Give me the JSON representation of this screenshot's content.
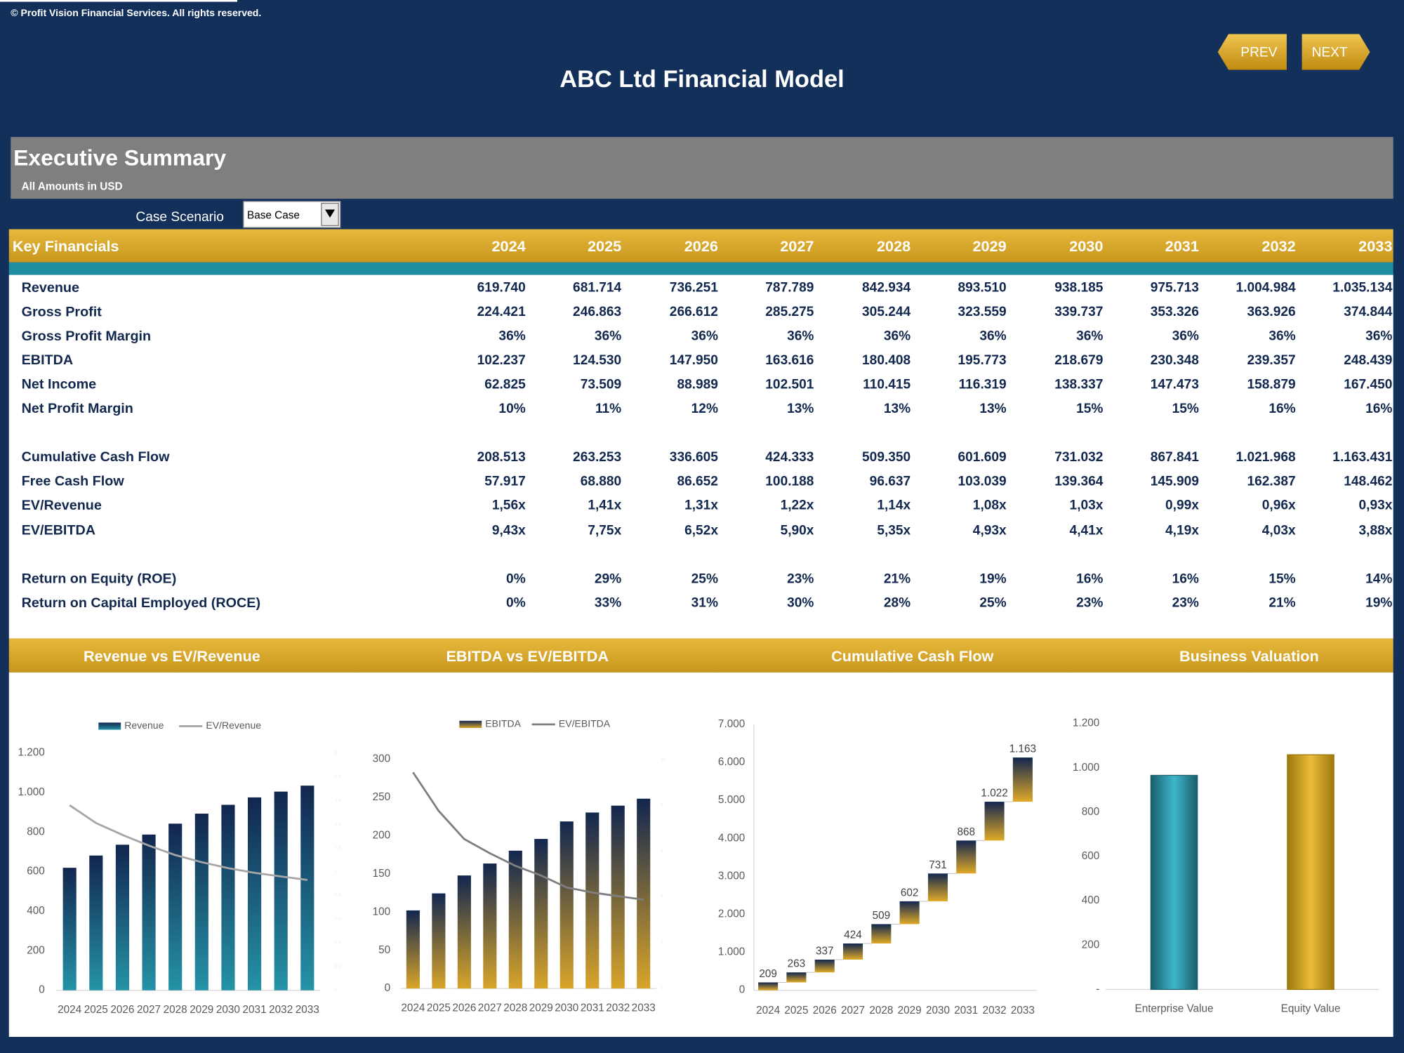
{
  "header": {
    "copyright": "© Profit Vision Financial Services. All rights reserved.",
    "title": "ABC Ltd Financial Model",
    "buttons": [
      "PREV",
      "NEXT"
    ]
  },
  "section": {
    "title": "Executive Summary",
    "subtitle": "All Amounts in  USD"
  },
  "scenario": {
    "label": "Case Scenario",
    "value": "Base Case"
  },
  "table": {
    "header": "Key Financials",
    "columns": [
      "2024",
      "2025",
      "2026",
      "2027",
      "2028",
      "2029",
      "2030",
      "2031",
      "2032",
      "2033"
    ],
    "rows": [
      [
        "Revenue",
        "619.740",
        "681.714",
        "736.251",
        "787.789",
        "842.934",
        "893.510",
        "938.185",
        "975.713",
        "1.004.984",
        "1.035.134"
      ],
      [
        "Gross Profit",
        "224.421",
        "246.863",
        "266.612",
        "285.275",
        "305.244",
        "323.559",
        "339.737",
        "353.326",
        "363.926",
        "374.844"
      ],
      [
        "Gross Profit Margin",
        "36%",
        "36%",
        "36%",
        "36%",
        "36%",
        "36%",
        "36%",
        "36%",
        "36%",
        "36%"
      ],
      [
        "EBITDA",
        "102.237",
        "124.530",
        "147.950",
        "163.616",
        "180.408",
        "195.773",
        "218.679",
        "230.348",
        "239.357",
        "248.439"
      ],
      [
        "Net Income",
        "62.825",
        "73.509",
        "88.989",
        "102.501",
        "110.415",
        "116.319",
        "138.337",
        "147.473",
        "158.879",
        "167.450"
      ],
      [
        "Net Profit Margin",
        "10%",
        "11%",
        "12%",
        "13%",
        "13%",
        "13%",
        "15%",
        "15%",
        "16%",
        "16%"
      ],
      [
        "Cumulative Cash Flow",
        "208.513",
        "263.253",
        "336.605",
        "424.333",
        "509.350",
        "601.609",
        "731.032",
        "867.841",
        "1.021.968",
        "1.163.431"
      ],
      [
        "Free Cash Flow",
        "57.917",
        "68.880",
        "86.652",
        "100.188",
        "96.637",
        "103.039",
        "139.364",
        "145.909",
        "162.387",
        "148.462"
      ],
      [
        "EV/Revenue",
        "1,56x",
        "1,41x",
        "1,31x",
        "1,22x",
        "1,14x",
        "1,08x",
        "1,03x",
        "0,99x",
        "0,96x",
        "0,93x"
      ],
      [
        "EV/EBITDA",
        "9,43x",
        "7,75x",
        "6,52x",
        "5,90x",
        "5,35x",
        "4,93x",
        "4,41x",
        "4,19x",
        "4,03x",
        "3,88x"
      ],
      [
        "Return on Equity (ROE)",
        "0%",
        "29%",
        "25%",
        "23%",
        "21%",
        "19%",
        "16%",
        "16%",
        "15%",
        "14%"
      ],
      [
        "Return on Capital Employed (ROCE)",
        "0%",
        "33%",
        "31%",
        "30%",
        "28%",
        "25%",
        "23%",
        "23%",
        "21%",
        "19%"
      ]
    ]
  },
  "chart_data": [
    {
      "type": "combo",
      "title": "Revenue vs EV/Revenue",
      "categories": [
        "2024",
        "2025",
        "2026",
        "2027",
        "2028",
        "2029",
        "2030",
        "2031",
        "2032",
        "2033"
      ],
      "series": [
        {
          "name": "Revenue",
          "gradient": [
            "#12264f",
            "#2593a6"
          ],
          "values": [
            619.74,
            681.714,
            736.251,
            787.789,
            842.934,
            893.51,
            938.185,
            975.713,
            1004.984,
            1035.134
          ]
        },
        {
          "name": "EV/Revenue",
          "color": "#a6a6a6",
          "axis": "y2",
          "values": [
            1.56,
            1.41,
            1.31,
            1.22,
            1.14,
            1.08,
            1.03,
            0.99,
            0.96,
            0.93
          ]
        }
      ],
      "ylim": [
        0,
        1200
      ],
      "yticks": [
        0,
        200,
        400,
        600,
        800,
        {
          "value": 1000,
          "label": "1.000"
        },
        {
          "value": 1200,
          "label": "1.200"
        }
      ],
      "y2lim": [
        0,
        2
      ],
      "y2ticks": [
        0,
        0.2,
        0.4,
        0.6,
        0.8,
        1,
        1.2,
        1.4,
        1.6,
        1.8,
        2
      ],
      "legend": "top"
    },
    {
      "type": "combo",
      "title": "EBITDA vs EV/EBITDA",
      "categories": [
        "2024",
        "2025",
        "2026",
        "2027",
        "2028",
        "2029",
        "2030",
        "2031",
        "2032",
        "2033"
      ],
      "series": [
        {
          "name": "EBITDA",
          "gradient": [
            "#12264f",
            "#d9a52a"
          ],
          "values": [
            102.237,
            124.53,
            147.95,
            163.616,
            180.408,
            195.773,
            218.679,
            230.348,
            239.357,
            248.439
          ]
        },
        {
          "name": "EV/EBITDA",
          "color": "#7f7f7f",
          "axis": "y2",
          "values": [
            9.43,
            7.75,
            6.52,
            5.9,
            5.35,
            4.93,
            4.41,
            4.19,
            4.03,
            3.88
          ]
        }
      ],
      "ylim": [
        0,
        300
      ],
      "yticks": [
        0,
        50,
        100,
        150,
        200,
        250,
        300
      ],
      "y2lim": [
        0,
        10
      ],
      "y2ticks": [
        0,
        2,
        4,
        6,
        8,
        10
      ],
      "legend": "top"
    },
    {
      "type": "waterfall",
      "title": "Cumulative Cash Flow",
      "categories": [
        "2024",
        "2025",
        "2026",
        "2027",
        "2028",
        "2029",
        "2030",
        "2031",
        "2032",
        "2033"
      ],
      "gradient": [
        "#12264f",
        "#e0aa28"
      ],
      "values": [
        208.513,
        263.253,
        336.605,
        424.333,
        509.35,
        601.609,
        731.032,
        867.841,
        1021.968,
        1163.431
      ],
      "value_labels": [
        "209",
        "263",
        "337",
        "424",
        "509",
        "602",
        "731",
        "868",
        "1.022",
        "1.163"
      ],
      "ylim": [
        0,
        7000
      ],
      "yticks": [
        0,
        {
          "value": 1000,
          "label": "1.000"
        },
        {
          "value": 2000,
          "label": "2.000"
        },
        {
          "value": 3000,
          "label": "3.000"
        },
        {
          "value": 4000,
          "label": "4.000"
        },
        {
          "value": 5000,
          "label": "5.000"
        },
        {
          "value": 6000,
          "label": "6.000"
        },
        {
          "value": 7000,
          "label": "7.000"
        }
      ]
    },
    {
      "type": "bar",
      "title": "Business Valuation",
      "categories": [
        "Enterprise Value",
        "Equity Value"
      ],
      "values": [
        966,
        1059
      ],
      "gradients": [
        [
          "#1a5f6b",
          "#3cb6cb"
        ],
        [
          "#9c780c",
          "#ebbd3a"
        ]
      ],
      "ylim": [
        0,
        1200
      ],
      "yticks": [
        {
          "value": 0,
          "label": "-"
        },
        200,
        400,
        600,
        800,
        {
          "value": 1000,
          "label": "1.000"
        },
        {
          "value": 1200,
          "label": "1.200"
        }
      ]
    }
  ]
}
